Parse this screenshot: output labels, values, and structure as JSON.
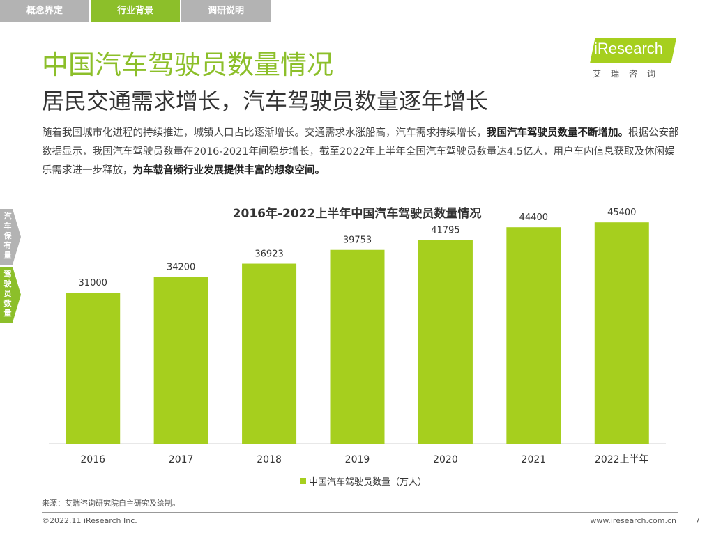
{
  "tabs": [
    {
      "label": "概念界定"
    },
    {
      "label": "行业背景"
    },
    {
      "label": "调研说明"
    }
  ],
  "logo": {
    "text": "iResearch",
    "sub": "艾瑞咨询"
  },
  "side_tabs": [
    {
      "label": "汽车保有量"
    },
    {
      "label": "驾驶员数量"
    }
  ],
  "header": {
    "title": "中国汽车驾驶员数量情况",
    "subtitle": "居民交通需求增长，汽车驾驶员数量逐年增长"
  },
  "paragraph": {
    "p1": "随着我国城市化进程的持续推进，城镇人口占比逐渐增长。交通需求水涨船高，汽车需求持续增长，",
    "b1": "我国汽车驾驶员数量不断增加。",
    "p2": "根据公安部数据显示，我国汽车驾驶员数量在2016-2021年间稳步增长，截至2022年上半年全国汽车驾驶员数量达4.5亿人，用户车内信息获取及休闲娱乐需求进一步释放，",
    "b2": "为车载音频行业发展提供丰富的想象空间。"
  },
  "chart_data": {
    "type": "bar",
    "title": "2016年-2022上半年中国汽车驾驶员数量情况",
    "categories": [
      "2016",
      "2017",
      "2018",
      "2019",
      "2020",
      "2021",
      "2022上半年"
    ],
    "series": [
      {
        "name": "中国汽车驾驶员数量（万人）",
        "values": [
          31000,
          34200,
          36923,
          39753,
          41795,
          44400,
          45400
        ],
        "color": "#a6cf1e"
      }
    ],
    "ylim": [
      0,
      50000
    ],
    "grid": false,
    "legend": "bottom-center"
  },
  "footer": {
    "source": "来源：艾瑞咨询研究院自主研究及绘制。",
    "copyright": "©2022.11 iResearch Inc.",
    "site": "www.iresearch.com.cn",
    "page": "7"
  }
}
